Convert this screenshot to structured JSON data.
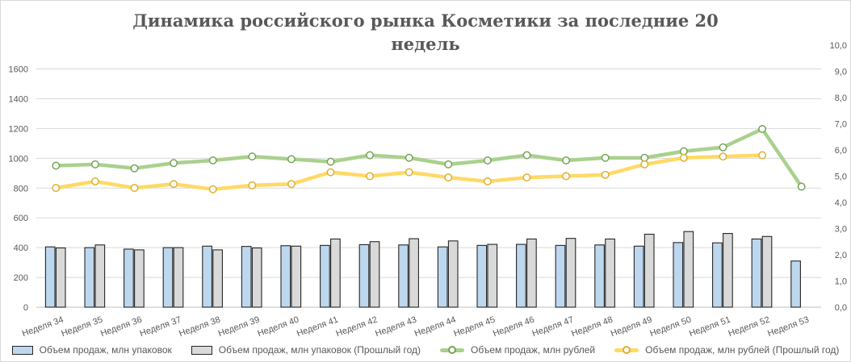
{
  "title": {
    "line1": "Динамика российского рынка Косметики за последние 20",
    "line2": "недель",
    "full": "Динамика российского рынка Косметики за последние 20 недель"
  },
  "colors": {
    "title_text": "#595959",
    "axis_text": "#595959",
    "gridline": "#d9d9d9",
    "axis_line": "#bfbfbf",
    "bar_border": "#262626",
    "canvas_border": "#d9d9d9"
  },
  "chart_data": {
    "type": "combo: bar + line",
    "categories": [
      "Неделя 34",
      "Неделя 35",
      "Неделя 36",
      "Неделя 37",
      "Неделя 38",
      "Неделя 39",
      "Неделя 40",
      "Неделя 41",
      "Неделя 42",
      "Неделя 43",
      "Неделя 44",
      "Неделя 45",
      "Неделя 46",
      "Неделя 47",
      "Неделя 48",
      "Неделя 49",
      "Неделя 50",
      "Неделя 51",
      "Неделя 52",
      "Неделя 53"
    ],
    "left_axis": {
      "min": 0,
      "max": 1600,
      "step": 200,
      "top_render_value": 1760,
      "ticks": [
        0,
        200,
        400,
        600,
        800,
        1000,
        1200,
        1400,
        1600
      ],
      "tick_labels": [
        "0",
        "200",
        "400",
        "600",
        "800",
        "1000",
        "1200",
        "1400",
        "1600"
      ]
    },
    "right_axis": {
      "min": 0.0,
      "max": 10.0,
      "step": 1.0,
      "ticks": [
        0,
        1,
        2,
        3,
        4,
        5,
        6,
        7,
        8,
        9,
        10
      ],
      "tick_labels": [
        "0,0",
        "1,0",
        "2,0",
        "3,0",
        "4,0",
        "5,0",
        "6,0",
        "7,0",
        "8,0",
        "9,0",
        "10,0"
      ]
    },
    "grid": "horizontal",
    "legend_position": "bottom",
    "series": [
      {
        "name": "Объем продаж, млн упаковок",
        "type": "bar",
        "axis": "left",
        "color": "#BDD7EE",
        "values": [
          405,
          400,
          390,
          400,
          410,
          408,
          413,
          415,
          420,
          418,
          405,
          415,
          422,
          415,
          418,
          410,
          434,
          432,
          458,
          310
        ]
      },
      {
        "name": "Объем продаж, млн упаковок (Прошлый год)",
        "type": "bar",
        "axis": "left",
        "color": "#D9D9D9",
        "values": [
          398,
          418,
          385,
          400,
          385,
          398,
          410,
          458,
          440,
          460,
          445,
          422,
          458,
          462,
          458,
          490,
          508,
          495,
          475,
          null
        ]
      },
      {
        "name": "Объем продаж, млн рублей",
        "type": "line",
        "axis": "right",
        "color": "#A9D18E",
        "marker_color": "#74A455",
        "values": [
          5.4,
          5.45,
          5.3,
          5.5,
          5.6,
          5.75,
          5.65,
          5.55,
          5.8,
          5.7,
          5.45,
          5.6,
          5.8,
          5.6,
          5.7,
          5.7,
          5.95,
          6.1,
          6.8,
          4.6
        ]
      },
      {
        "name": "Объем продаж, млн рублей (Прошлый год)",
        "type": "line",
        "axis": "right",
        "color": "#FFD966",
        "marker_color": "#DFAE2E",
        "values": [
          4.55,
          4.8,
          4.55,
          4.7,
          4.5,
          4.65,
          4.7,
          5.15,
          5.0,
          5.15,
          4.95,
          4.8,
          4.95,
          5.0,
          5.05,
          5.45,
          5.7,
          5.75,
          5.8,
          null
        ]
      }
    ]
  }
}
